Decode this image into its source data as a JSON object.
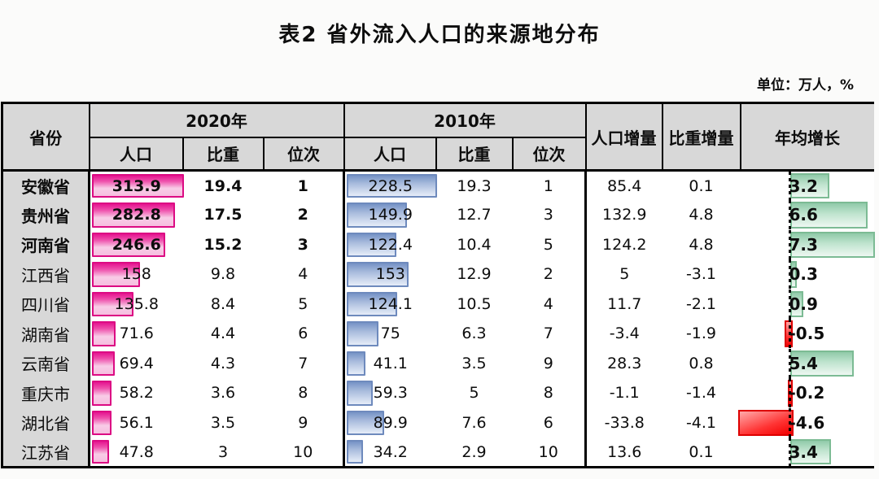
{
  "page": {
    "title": "表2  省外流入人口的来源地分布",
    "unit_note": "单位：万人，%"
  },
  "colors": {
    "header_bg": "#d8d8d8",
    "bar_2020_pink": "#e51590",
    "bar_2010_blue": "#7693c6",
    "bar_growth_positive_green": "#90caa9",
    "bar_growth_negative_red": "#f20000",
    "border": "#000000"
  },
  "chart_data": {
    "type": "table",
    "title": "表2 省外流入人口的来源地分布",
    "unit": "万人，%",
    "headers": {
      "province": "省份",
      "y2020": "2020年",
      "y2010": "2010年",
      "pop": "人口",
      "share": "比重",
      "rank": "位次",
      "pop_change": "人口增量",
      "share_change": "比重增量",
      "annual_growth": "年均增长"
    },
    "databars": {
      "pop2020_max": 313.9,
      "pop2010_max": 228.5,
      "growth_min": -4.6,
      "growth_max": 7.3
    },
    "rows": [
      {
        "province": "安徽省",
        "pop2020": "313.9",
        "share2020": "19.4",
        "rank2020": "1",
        "pop2010": "228.5",
        "share2010": "19.3",
        "rank2010": "1",
        "pop_change": "85.4",
        "share_change": "0.1",
        "annual_growth": "3.2",
        "emphasis": true
      },
      {
        "province": "贵州省",
        "pop2020": "282.8",
        "share2020": "17.5",
        "rank2020": "2",
        "pop2010": "149.9",
        "share2010": "12.7",
        "rank2010": "3",
        "pop_change": "132.9",
        "share_change": "4.8",
        "annual_growth": "6.6",
        "emphasis": true
      },
      {
        "province": "河南省",
        "pop2020": "246.6",
        "share2020": "15.2",
        "rank2020": "3",
        "pop2010": "122.4",
        "share2010": "10.4",
        "rank2010": "5",
        "pop_change": "124.2",
        "share_change": "4.8",
        "annual_growth": "7.3",
        "emphasis": true
      },
      {
        "province": "江西省",
        "pop2020": "158",
        "share2020": "9.8",
        "rank2020": "4",
        "pop2010": "153",
        "share2010": "12.9",
        "rank2010": "2",
        "pop_change": "5",
        "share_change": "-3.1",
        "annual_growth": "0.3",
        "emphasis": false
      },
      {
        "province": "四川省",
        "pop2020": "135.8",
        "share2020": "8.4",
        "rank2020": "5",
        "pop2010": "124.1",
        "share2010": "10.5",
        "rank2010": "4",
        "pop_change": "11.7",
        "share_change": "-2.1",
        "annual_growth": "0.9",
        "emphasis": false
      },
      {
        "province": "湖南省",
        "pop2020": "71.6",
        "share2020": "4.4",
        "rank2020": "6",
        "pop2010": "75",
        "share2010": "6.3",
        "rank2010": "7",
        "pop_change": "-3.4",
        "share_change": "-1.9",
        "annual_growth": "-0.5",
        "emphasis": false
      },
      {
        "province": "云南省",
        "pop2020": "69.4",
        "share2020": "4.3",
        "rank2020": "7",
        "pop2010": "41.1",
        "share2010": "3.5",
        "rank2010": "9",
        "pop_change": "28.3",
        "share_change": "0.8",
        "annual_growth": "5.4",
        "emphasis": false
      },
      {
        "province": "重庆市",
        "pop2020": "58.2",
        "share2020": "3.6",
        "rank2020": "8",
        "pop2010": "59.3",
        "share2010": "5",
        "rank2010": "8",
        "pop_change": "-1.1",
        "share_change": "-1.4",
        "annual_growth": "-0.2",
        "emphasis": false
      },
      {
        "province": "湖北省",
        "pop2020": "56.1",
        "share2020": "3.5",
        "rank2020": "9",
        "pop2010": "89.9",
        "share2010": "7.6",
        "rank2010": "6",
        "pop_change": "-33.8",
        "share_change": "-4.1",
        "annual_growth": "-4.6",
        "emphasis": false
      },
      {
        "province": "江苏省",
        "pop2020": "47.8",
        "share2020": "3",
        "rank2020": "10",
        "pop2010": "34.2",
        "share2010": "2.9",
        "rank2010": "10",
        "pop_change": "13.6",
        "share_change": "0.1",
        "annual_growth": "3.4",
        "emphasis": false
      }
    ]
  }
}
